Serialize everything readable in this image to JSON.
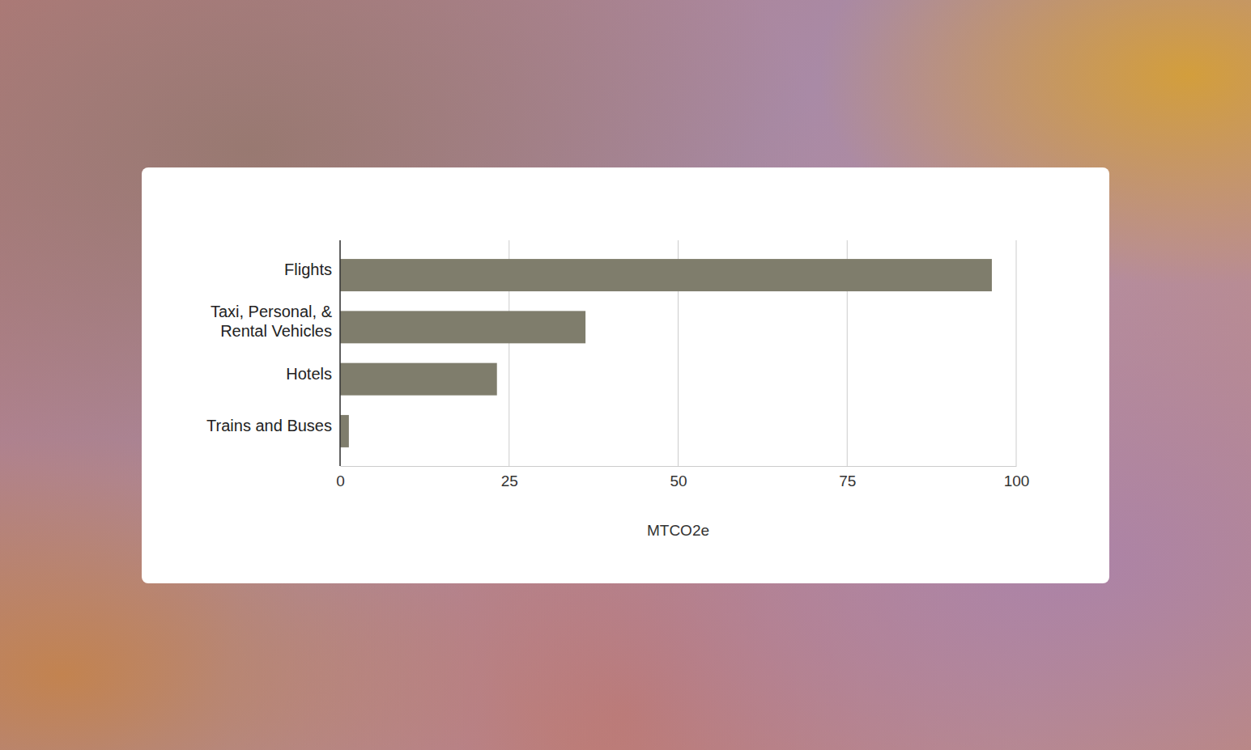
{
  "chart_data": {
    "type": "bar",
    "orientation": "horizontal",
    "categories": [
      "Flights",
      "Taxi, Personal, &\nRental Vehicles",
      "Hotels",
      "Trains and Buses"
    ],
    "values": [
      96.4,
      36.3,
      23.2,
      1.3
    ],
    "color": "#7f7d6c",
    "x_label": "MTCO2e",
    "xlim": [
      0,
      100
    ],
    "xticks": [
      0,
      25,
      50,
      75,
      100
    ],
    "grid": true
  }
}
